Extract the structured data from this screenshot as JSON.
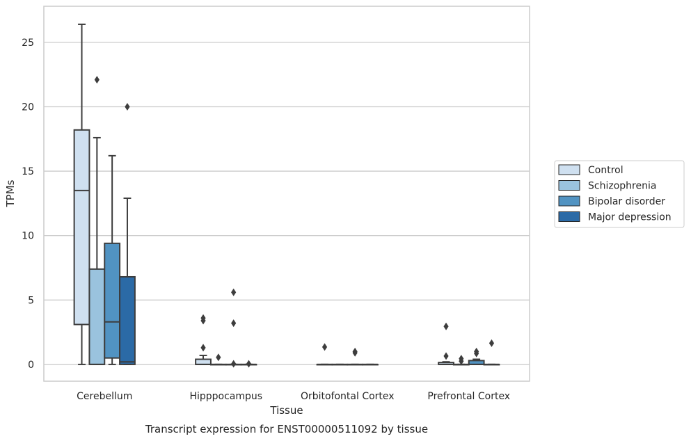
{
  "chart_data": {
    "type": "box",
    "title": "",
    "caption": "Transcript expression for ENST00000511092 by tissue",
    "xlabel": "Tissue",
    "ylabel": "TPMs",
    "ylim": [
      -1.3,
      27.8
    ],
    "yticks": [
      0,
      5,
      10,
      15,
      20,
      25
    ],
    "grid": true,
    "legend_position": "right",
    "categories": [
      "Cerebellum",
      "Hipppocampus",
      "Orbitofontal Cortex",
      "Prefrontal Cortex"
    ],
    "series": [
      {
        "name": "Control",
        "color": "#cfe0f0",
        "boxes": [
          {
            "whisker_low": 0,
            "q1": 3.1,
            "median": 13.5,
            "q3": 18.2,
            "whisker_high": 26.4,
            "outliers": []
          },
          {
            "whisker_low": 0,
            "q1": 0,
            "median": 0,
            "q3": 0.4,
            "whisker_high": 0.7,
            "outliers": [
              1.3,
              3.4,
              3.6
            ]
          },
          {
            "whisker_low": 0,
            "q1": 0,
            "median": 0,
            "q3": 0,
            "whisker_high": 0,
            "outliers": [
              1.35
            ]
          },
          {
            "whisker_low": 0,
            "q1": 0,
            "median": 0,
            "q3": 0.15,
            "whisker_high": 0.2,
            "outliers": [
              0.65,
              2.95
            ]
          }
        ]
      },
      {
        "name": "Schizophrenia",
        "color": "#9ac3de",
        "boxes": [
          {
            "whisker_low": 0,
            "q1": 0,
            "median": 0,
            "q3": 7.4,
            "whisker_high": 17.6,
            "outliers": [
              22.1
            ]
          },
          {
            "whisker_low": 0,
            "q1": 0,
            "median": 0,
            "q3": 0,
            "whisker_high": 0,
            "outliers": [
              0.55
            ]
          },
          {
            "whisker_low": 0,
            "q1": 0,
            "median": 0,
            "q3": 0,
            "whisker_high": 0,
            "outliers": []
          },
          {
            "whisker_low": 0,
            "q1": 0,
            "median": 0,
            "q3": 0,
            "whisker_high": 0,
            "outliers": [
              0.25,
              0.45
            ]
          }
        ]
      },
      {
        "name": "Bipolar disorder",
        "color": "#5193c2",
        "boxes": [
          {
            "whisker_low": 0,
            "q1": 0.5,
            "median": 3.3,
            "q3": 9.4,
            "whisker_high": 16.2,
            "outliers": []
          },
          {
            "whisker_low": 0,
            "q1": 0,
            "median": 0,
            "q3": 0,
            "whisker_high": 0,
            "outliers": [
              0.05,
              3.2,
              5.6
            ]
          },
          {
            "whisker_low": 0,
            "q1": 0,
            "median": 0,
            "q3": 0,
            "whisker_high": 0,
            "outliers": [
              0.9,
              1.0
            ]
          },
          {
            "whisker_low": 0,
            "q1": 0,
            "median": 0,
            "q3": 0.3,
            "whisker_high": 0.4,
            "outliers": [
              0.85,
              1.0
            ]
          }
        ]
      },
      {
        "name": "Major depression",
        "color": "#2b6aa6",
        "boxes": [
          {
            "whisker_low": 0,
            "q1": 0,
            "median": 0.2,
            "q3": 6.8,
            "whisker_high": 12.9,
            "outliers": [
              20.0
            ]
          },
          {
            "whisker_low": 0,
            "q1": 0,
            "median": 0,
            "q3": 0,
            "whisker_high": 0,
            "outliers": [
              0.05
            ]
          },
          {
            "whisker_low": 0,
            "q1": 0,
            "median": 0,
            "q3": 0,
            "whisker_high": 0,
            "outliers": []
          },
          {
            "whisker_low": 0,
            "q1": 0,
            "median": 0,
            "q3": 0,
            "whisker_high": 0,
            "outliers": [
              1.65
            ]
          }
        ]
      }
    ]
  }
}
